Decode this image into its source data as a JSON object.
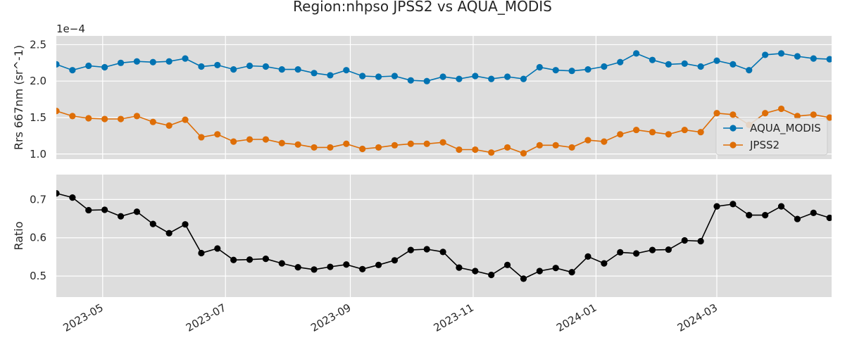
{
  "title": "Region:nhpso JPSS2 vs AQUA_MODIS",
  "colors": {
    "aqua": "#0173b2",
    "jpss2": "#de6e07",
    "ratio": "#000000",
    "panel_bg": "#dddddd",
    "grid": "#ffffff"
  },
  "chart_data": [
    {
      "type": "line",
      "ylabel": "Rrs 667nm (sr^-1)",
      "offset_label": "1e−4",
      "ylim": [
        0.93,
        2.62
      ],
      "yticks": [
        1.0,
        1.5,
        2.0,
        2.5
      ],
      "ytick_labels": [
        "1.0",
        "1.5",
        "2.0",
        "2.5"
      ],
      "xlim": [
        "2023-04-08",
        "2024-04-27"
      ],
      "grid": true,
      "legend_position": "right",
      "x": [
        "2023-04-08",
        "2023-04-16",
        "2023-04-24",
        "2023-05-02",
        "2023-05-10",
        "2023-05-18",
        "2023-05-26",
        "2023-06-03",
        "2023-06-11",
        "2023-06-19",
        "2023-06-27",
        "2023-07-05",
        "2023-07-13",
        "2023-07-21",
        "2023-07-29",
        "2023-08-06",
        "2023-08-14",
        "2023-08-22",
        "2023-08-30",
        "2023-09-07",
        "2023-09-15",
        "2023-09-23",
        "2023-10-01",
        "2023-10-09",
        "2023-10-17",
        "2023-10-25",
        "2023-11-02",
        "2023-11-10",
        "2023-11-18",
        "2023-11-26",
        "2023-12-04",
        "2023-12-12",
        "2023-12-20",
        "2023-12-28",
        "2024-01-05",
        "2024-01-13",
        "2024-01-21",
        "2024-01-29",
        "2024-02-06",
        "2024-02-14",
        "2024-02-22",
        "2024-03-01",
        "2024-03-09",
        "2024-03-17",
        "2024-03-25",
        "2024-04-02",
        "2024-04-10",
        "2024-04-18",
        "2024-04-26"
      ],
      "series": [
        {
          "name": "AQUA_MODIS",
          "color": "#0173b2",
          "values": [
            2.23,
            2.15,
            2.21,
            2.19,
            2.25,
            2.27,
            2.26,
            2.27,
            2.31,
            2.2,
            2.22,
            2.16,
            2.21,
            2.2,
            2.16,
            2.16,
            2.11,
            2.08,
            2.15,
            2.07,
            2.06,
            2.07,
            2.01,
            2.0,
            2.06,
            2.03,
            2.07,
            2.03,
            2.06,
            2.03,
            2.19,
            2.15,
            2.14,
            2.16,
            2.2,
            2.26,
            2.38,
            2.29,
            2.23,
            2.24,
            2.2,
            2.28,
            2.23,
            2.15,
            2.36,
            2.38,
            2.34,
            2.31,
            2.3
          ]
        },
        {
          "name": "JPSS2",
          "color": "#de6e07",
          "values": [
            1.59,
            1.52,
            1.49,
            1.48,
            1.48,
            1.52,
            1.44,
            1.39,
            1.47,
            1.23,
            1.27,
            1.17,
            1.2,
            1.2,
            1.15,
            1.13,
            1.09,
            1.09,
            1.14,
            1.07,
            1.09,
            1.12,
            1.14,
            1.14,
            1.16,
            1.06,
            1.06,
            1.02,
            1.09,
            1.01,
            1.12,
            1.12,
            1.09,
            1.19,
            1.17,
            1.27,
            1.33,
            1.3,
            1.27,
            1.33,
            1.3,
            1.56,
            1.54,
            1.4,
            1.56,
            1.62,
            1.52,
            1.54,
            1.5
          ]
        }
      ]
    },
    {
      "type": "line",
      "ylabel": "Ratio",
      "ylim": [
        0.445,
        0.765
      ],
      "yticks": [
        0.5,
        0.6,
        0.7
      ],
      "ytick_labels": [
        "0.5",
        "0.6",
        "0.7"
      ],
      "xlim": [
        "2023-04-08",
        "2024-04-27"
      ],
      "grid": true,
      "xtick_dates": [
        "2023-05-01",
        "2023-07-01",
        "2023-09-01",
        "2023-11-01",
        "2024-01-01",
        "2024-03-01"
      ],
      "xtick_labels": [
        "2023-05",
        "2023-07",
        "2023-09",
        "2023-11",
        "2024-01",
        "2024-03"
      ],
      "x": [
        "2023-04-08",
        "2023-04-16",
        "2023-04-24",
        "2023-05-02",
        "2023-05-10",
        "2023-05-18",
        "2023-05-26",
        "2023-06-03",
        "2023-06-11",
        "2023-06-19",
        "2023-06-27",
        "2023-07-05",
        "2023-07-13",
        "2023-07-21",
        "2023-07-29",
        "2023-08-06",
        "2023-08-14",
        "2023-08-22",
        "2023-08-30",
        "2023-09-07",
        "2023-09-15",
        "2023-09-23",
        "2023-10-01",
        "2023-10-09",
        "2023-10-17",
        "2023-10-25",
        "2023-11-02",
        "2023-11-10",
        "2023-11-18",
        "2023-11-26",
        "2023-12-04",
        "2023-12-12",
        "2023-12-20",
        "2023-12-28",
        "2024-01-05",
        "2024-01-13",
        "2024-01-21",
        "2024-01-29",
        "2024-02-06",
        "2024-02-14",
        "2024-02-22",
        "2024-03-01",
        "2024-03-09",
        "2024-03-17",
        "2024-03-25",
        "2024-04-02",
        "2024-04-10",
        "2024-04-18",
        "2024-04-26"
      ],
      "series": [
        {
          "color": "#000000",
          "values": [
            0.716,
            0.705,
            0.672,
            0.673,
            0.656,
            0.668,
            0.636,
            0.612,
            0.635,
            0.56,
            0.572,
            0.542,
            0.543,
            0.545,
            0.533,
            0.523,
            0.517,
            0.524,
            0.53,
            0.518,
            0.529,
            0.541,
            0.568,
            0.57,
            0.563,
            0.522,
            0.513,
            0.503,
            0.529,
            0.493,
            0.513,
            0.521,
            0.51,
            0.551,
            0.533,
            0.562,
            0.559,
            0.568,
            0.569,
            0.593,
            0.591,
            0.682,
            0.688,
            0.659,
            0.659,
            0.682,
            0.649,
            0.665,
            0.652
          ]
        }
      ]
    }
  ]
}
